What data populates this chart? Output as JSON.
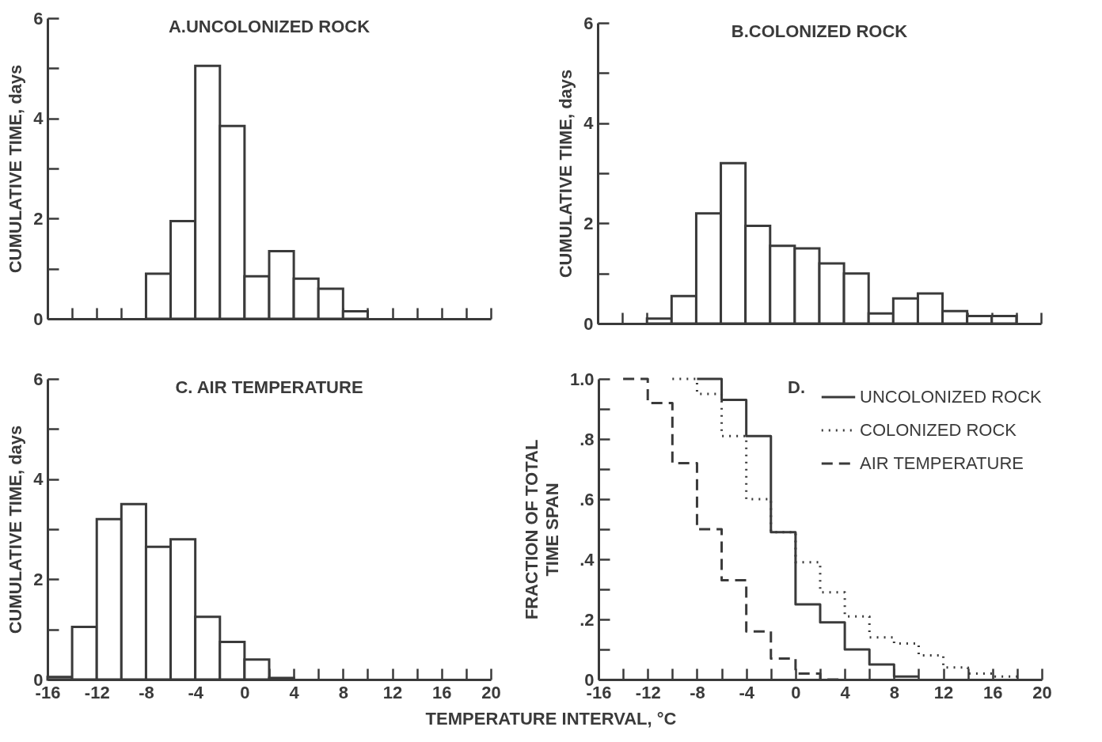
{
  "chart_data": [
    {
      "type": "histogram",
      "title": "A.UNCOLONIZED ROCK",
      "ylabel": "CUMULATIVE TIME, days",
      "color": "#3a3a3a",
      "bins": [
        -8,
        -6,
        -4,
        -2,
        0,
        2,
        4,
        6,
        8,
        10
      ],
      "values": [
        0.9,
        1.95,
        5.05,
        3.85,
        0.85,
        1.35,
        0.8,
        0.6,
        0.15
      ],
      "xlim": [
        -16,
        20
      ],
      "xticks": [
        -16,
        {
          "value": -14,
          "label": null
        },
        -12,
        {
          "value": -10,
          "label": null
        },
        -8,
        {
          "value": -6,
          "label": null
        },
        -4,
        {
          "value": -2,
          "label": null
        },
        0,
        {
          "value": 2,
          "label": null
        },
        4,
        {
          "value": 6,
          "label": null
        },
        8,
        {
          "value": 10,
          "label": null
        },
        12,
        {
          "value": 14,
          "label": null
        },
        16,
        {
          "value": 18,
          "label": null
        },
        20
      ],
      "ylim": [
        0,
        6
      ],
      "yticks": [
        0,
        {
          "value": 1,
          "label": null
        },
        2,
        {
          "value": 3,
          "label": null
        },
        4,
        {
          "value": 5,
          "label": null
        },
        6
      ],
      "tick_labels": "y"
    },
    {
      "type": "histogram",
      "title": "B.COLONIZED ROCK",
      "ylabel": "CUMULATIVE TIME, days",
      "color": "#3a3a3a",
      "bins": [
        -12,
        -10,
        -8,
        -6,
        -4,
        -2,
        0,
        2,
        4,
        6,
        8,
        10,
        12,
        14,
        16,
        18
      ],
      "values": [
        0.1,
        0.55,
        2.2,
        3.2,
        1.95,
        1.55,
        1.5,
        1.2,
        1.0,
        0.2,
        0.5,
        0.6,
        0.25,
        0.15,
        0.15
      ],
      "xlim": [
        -16,
        20
      ],
      "xticks": [
        -16,
        {
          "value": -14,
          "label": null
        },
        -12,
        {
          "value": -10,
          "label": null
        },
        -8,
        {
          "value": -6,
          "label": null
        },
        -4,
        {
          "value": -2,
          "label": null
        },
        0,
        {
          "value": 2,
          "label": null
        },
        4,
        {
          "value": 6,
          "label": null
        },
        8,
        {
          "value": 10,
          "label": null
        },
        12,
        {
          "value": 14,
          "label": null
        },
        16,
        {
          "value": 18,
          "label": null
        },
        20
      ],
      "ylim": [
        0,
        6
      ],
      "yticks": [
        0,
        {
          "value": 1,
          "label": null
        },
        2,
        {
          "value": 3,
          "label": null
        },
        4,
        {
          "value": 5,
          "label": null
        },
        6
      ],
      "tick_labels": "y"
    },
    {
      "type": "histogram",
      "title": "C.  AIR TEMPERATURE",
      "ylabel": "CUMULATIVE TIME, days",
      "xlabel": "TEMPERATURE INTERVAL, °C",
      "color": "#3a3a3a",
      "bins": [
        -16,
        -14,
        -12,
        -10,
        -8,
        -6,
        -4,
        -2,
        0,
        2,
        4
      ],
      "values": [
        0.05,
        1.05,
        3.2,
        3.5,
        2.65,
        2.8,
        1.25,
        0.75,
        0.4,
        0.03
      ],
      "xlim": [
        -16,
        20
      ],
      "xticks": [
        -16,
        {
          "value": -14,
          "label": null
        },
        -12,
        {
          "value": -10,
          "label": null
        },
        -8,
        {
          "value": -6,
          "label": null
        },
        -4,
        {
          "value": -2,
          "label": null
        },
        0,
        {
          "value": 2,
          "label": null
        },
        4,
        {
          "value": 6,
          "label": null
        },
        8,
        {
          "value": 10,
          "label": null
        },
        12,
        {
          "value": 14,
          "label": null
        },
        16,
        {
          "value": 18,
          "label": null
        },
        20
      ],
      "ylim": [
        0,
        6
      ],
      "yticks": [
        0,
        {
          "value": 1,
          "label": null
        },
        2,
        {
          "value": 3,
          "label": null
        },
        4,
        {
          "value": 5,
          "label": null
        },
        6
      ]
    },
    {
      "type": "step",
      "title": "D.",
      "ylabel": "FRACTION OF TOTAL\nTIME SPAN",
      "legend": "top right",
      "marker": "none",
      "series": [
        {
          "name": "UNCOLONIZED ROCK",
          "color": "#3a3a3a",
          "line_style": "solid",
          "x": [
            -8,
            -6,
            -4,
            -2,
            0,
            2,
            4,
            6,
            8,
            10
          ],
          "values": [
            1.0,
            0.93,
            0.81,
            0.49,
            0.25,
            0.19,
            0.1,
            0.05,
            0.01,
            0.01
          ]
        },
        {
          "name": "COLONIZED ROCK",
          "color": "#3a3a3a",
          "line_style": "dotted",
          "x": [
            -10,
            -8,
            -6,
            -4,
            -2,
            0,
            2,
            4,
            6,
            8,
            10,
            12,
            14,
            16,
            18
          ],
          "values": [
            1.0,
            0.95,
            0.81,
            0.6,
            0.49,
            0.39,
            0.29,
            0.21,
            0.14,
            0.12,
            0.08,
            0.04,
            0.02,
            0.01,
            0.01
          ]
        },
        {
          "name": "AIR TEMPERATURE",
          "color": "#3a3a3a",
          "line_style": "dashed",
          "x": [
            -14,
            -12,
            -10,
            -8,
            -6,
            -4,
            -2,
            0,
            2,
            4
          ],
          "values": [
            1.0,
            0.92,
            0.72,
            0.5,
            0.33,
            0.16,
            0.07,
            0.02,
            0.0,
            0.0
          ]
        }
      ],
      "xlim": [
        -16,
        20
      ],
      "xticks": [
        -16,
        {
          "value": -14,
          "label": null
        },
        -12,
        {
          "value": -10,
          "label": null
        },
        -8,
        {
          "value": -6,
          "label": null
        },
        -4,
        {
          "value": -2,
          "label": null
        },
        0,
        {
          "value": 2,
          "label": null
        },
        4,
        {
          "value": 6,
          "label": null
        },
        8,
        {
          "value": 10,
          "label": null
        },
        12,
        {
          "value": 14,
          "label": null
        },
        16,
        {
          "value": 18,
          "label": null
        },
        20
      ],
      "ylim": [
        0,
        1
      ],
      "yticks": [
        0,
        {
          "value": 0.1,
          "label": null
        },
        {
          "value": 0.2,
          "label": ".2"
        },
        {
          "value": 0.3,
          "label": null
        },
        {
          "value": 0.4,
          "label": ".4"
        },
        {
          "value": 0.5,
          "label": null
        },
        {
          "value": 0.6,
          "label": ".6"
        },
        {
          "value": 0.7,
          "label": null
        },
        {
          "value": 0.8,
          "label": ".8"
        },
        {
          "value": 0.9,
          "label": null
        },
        {
          "value": 1,
          "label": "1.0"
        }
      ]
    }
  ]
}
